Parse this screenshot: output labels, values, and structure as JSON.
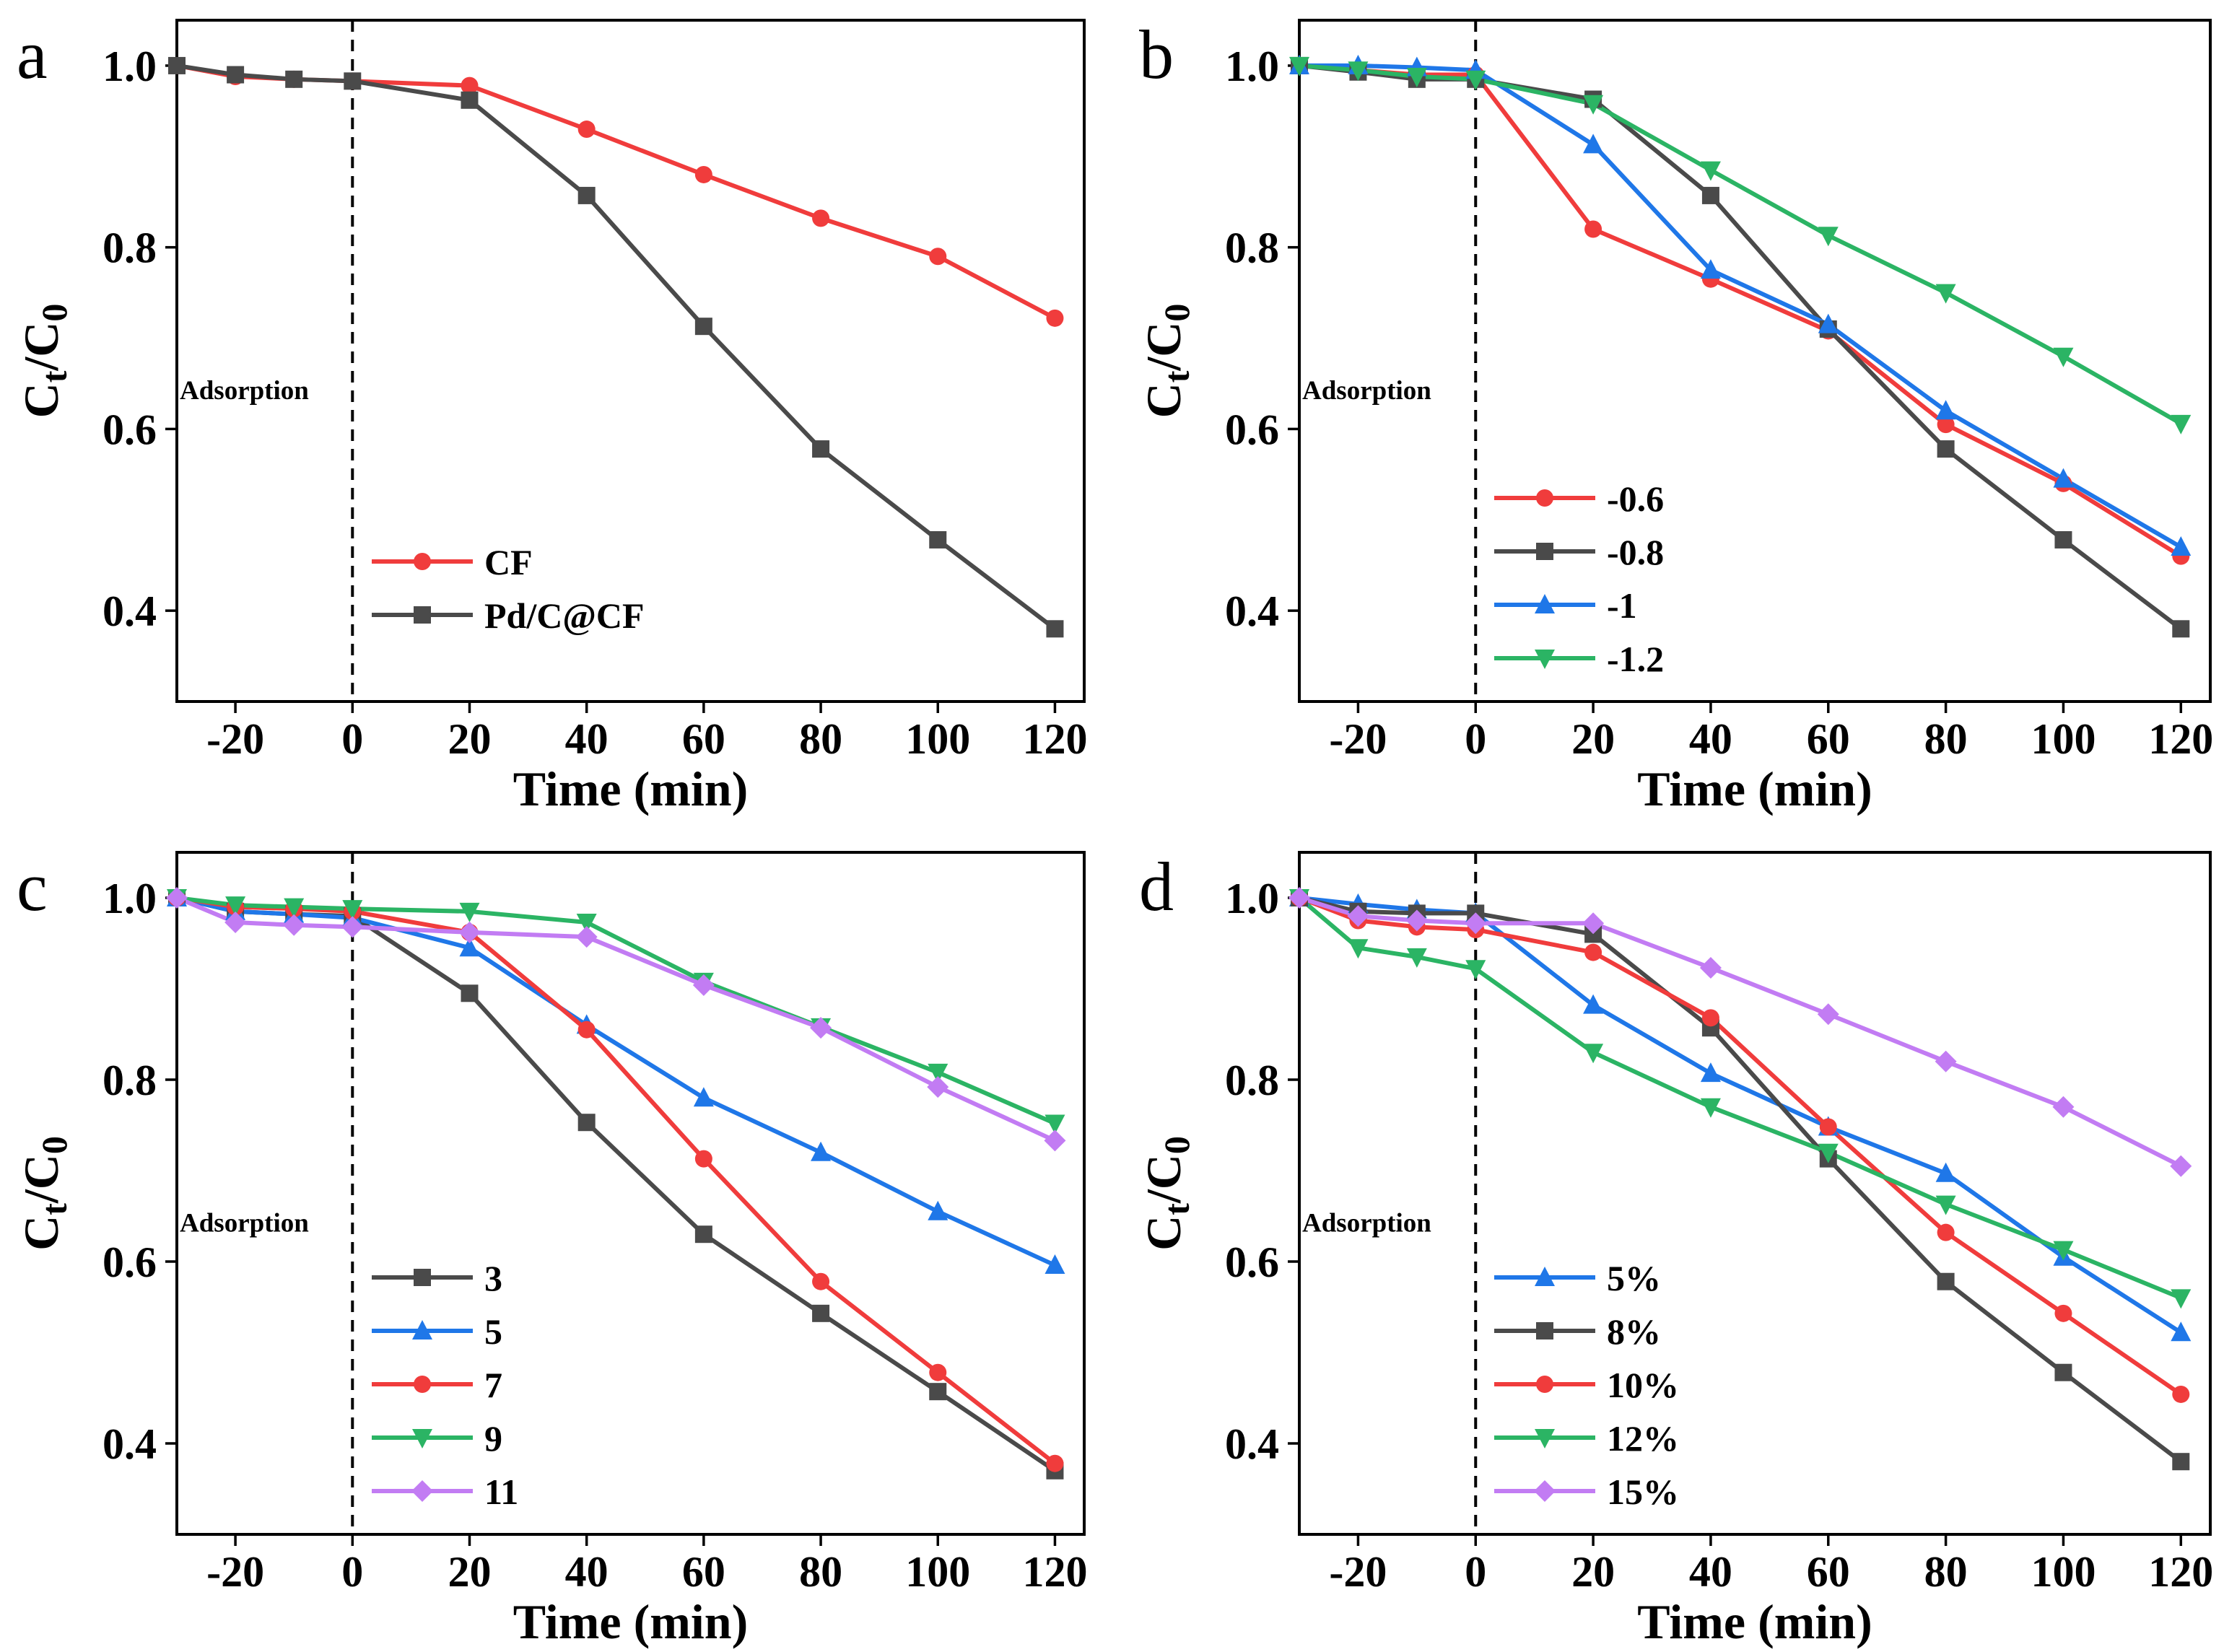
{
  "chart_data": [
    {
      "type": "line",
      "panel": "a",
      "title": "",
      "xlabel": "Time (min)",
      "ylabel": "Ct/C0",
      "xlim": [
        -30,
        125
      ],
      "ylim": [
        0.3,
        1.05
      ],
      "xticks": [
        -20,
        0,
        20,
        40,
        60,
        80,
        100,
        120
      ],
      "yticks": [
        0.4,
        0.6,
        0.8,
        1.0
      ],
      "annotation": "Adsorption",
      "vline_x": 0,
      "legend_position": "bottom-center",
      "x": [
        -30,
        -20,
        -10,
        0,
        20,
        40,
        60,
        80,
        100,
        120
      ],
      "series": [
        {
          "name": "CF",
          "color": "#f03c3c",
          "marker": "circle",
          "values": [
            1.0,
            0.988,
            0.985,
            0.983,
            0.978,
            0.93,
            0.88,
            0.832,
            0.79,
            0.722
          ]
        },
        {
          "name": "Pd/C@CF",
          "color": "#4a4a4a",
          "marker": "square",
          "values": [
            1.0,
            0.99,
            0.985,
            0.983,
            0.962,
            0.857,
            0.713,
            0.578,
            0.478,
            0.38
          ]
        }
      ]
    },
    {
      "type": "line",
      "panel": "b",
      "title": "",
      "xlabel": "Time (min)",
      "ylabel": "Ct/C0",
      "xlim": [
        -30,
        125
      ],
      "ylim": [
        0.3,
        1.05
      ],
      "xticks": [
        -20,
        0,
        20,
        40,
        60,
        80,
        100,
        120
      ],
      "yticks": [
        0.4,
        0.6,
        0.8,
        1.0
      ],
      "annotation": "Adsorption",
      "vline_x": 0,
      "legend_position": "bottom-center",
      "x": [
        -30,
        -20,
        -10,
        0,
        20,
        40,
        60,
        80,
        100,
        120
      ],
      "series": [
        {
          "name": "-0.6",
          "color": "#f03c3c",
          "marker": "circle",
          "values": [
            1.0,
            0.995,
            0.99,
            0.99,
            0.82,
            0.765,
            0.708,
            0.605,
            0.54,
            0.46
          ]
        },
        {
          "name": "-0.8",
          "color": "#4a4a4a",
          "marker": "square",
          "values": [
            1.0,
            0.993,
            0.985,
            0.985,
            0.963,
            0.857,
            0.71,
            0.578,
            0.478,
            0.38
          ]
        },
        {
          "name": "-1",
          "color": "#1f77e8",
          "marker": "triangle-up",
          "values": [
            1.0,
            1.0,
            0.998,
            0.995,
            0.913,
            0.775,
            0.715,
            0.62,
            0.545,
            0.47
          ]
        },
        {
          "name": "-1.2",
          "color": "#2bb464",
          "marker": "triangle-down",
          "values": [
            1.0,
            0.995,
            0.988,
            0.985,
            0.958,
            0.885,
            0.813,
            0.75,
            0.68,
            0.606
          ]
        }
      ]
    },
    {
      "type": "line",
      "panel": "c",
      "title": "",
      "xlabel": "Time (min)",
      "ylabel": "Ct/C0",
      "xlim": [
        -30,
        125
      ],
      "ylim": [
        0.3,
        1.05
      ],
      "xticks": [
        -20,
        0,
        20,
        40,
        60,
        80,
        100,
        120
      ],
      "yticks": [
        0.4,
        0.6,
        0.8,
        1.0
      ],
      "annotation": "Adsorption",
      "vline_x": 0,
      "legend_position": "bottom-center",
      "x": [
        -30,
        -20,
        -10,
        0,
        20,
        40,
        60,
        80,
        100,
        120
      ],
      "series": [
        {
          "name": "3",
          "color": "#4a4a4a",
          "marker": "square",
          "values": [
            1.0,
            0.985,
            0.982,
            0.98,
            0.895,
            0.753,
            0.63,
            0.543,
            0.457,
            0.37
          ]
        },
        {
          "name": "5",
          "color": "#1f77e8",
          "marker": "triangle-up",
          "values": [
            1.0,
            0.985,
            0.982,
            0.978,
            0.945,
            0.86,
            0.78,
            0.72,
            0.655,
            0.596
          ]
        },
        {
          "name": "7",
          "color": "#f03c3c",
          "marker": "circle",
          "values": [
            1.0,
            0.99,
            0.988,
            0.985,
            0.962,
            0.855,
            0.713,
            0.578,
            0.478,
            0.378
          ]
        },
        {
          "name": "9",
          "color": "#2bb464",
          "marker": "triangle-down",
          "values": [
            1.0,
            0.992,
            0.99,
            0.988,
            0.985,
            0.973,
            0.908,
            0.858,
            0.808,
            0.752
          ]
        },
        {
          "name": "11",
          "color": "#c27cf3",
          "marker": "diamond",
          "values": [
            1.0,
            0.973,
            0.97,
            0.968,
            0.962,
            0.957,
            0.904,
            0.857,
            0.792,
            0.733
          ]
        }
      ]
    },
    {
      "type": "line",
      "panel": "d",
      "title": "",
      "xlabel": "Time (min)",
      "ylabel": "Ct/C0",
      "xlim": [
        -30,
        125
      ],
      "ylim": [
        0.3,
        1.05
      ],
      "xticks": [
        -20,
        0,
        20,
        40,
        60,
        80,
        100,
        120
      ],
      "yticks": [
        0.4,
        0.6,
        0.8,
        1.0
      ],
      "annotation": "Adsorption",
      "vline_x": 0,
      "legend_position": "bottom-center",
      "x": [
        -30,
        -20,
        -10,
        0,
        20,
        40,
        60,
        80,
        100,
        120
      ],
      "series": [
        {
          "name": "5%",
          "color": "#1f77e8",
          "marker": "triangle-up",
          "values": [
            1.0,
            0.993,
            0.987,
            0.983,
            0.882,
            0.807,
            0.748,
            0.697,
            0.605,
            0.522
          ]
        },
        {
          "name": "8%",
          "color": "#4a4a4a",
          "marker": "square",
          "values": [
            1.0,
            0.985,
            0.983,
            0.983,
            0.96,
            0.857,
            0.713,
            0.578,
            0.478,
            0.38
          ]
        },
        {
          "name": "10%",
          "color": "#f03c3c",
          "marker": "circle",
          "values": [
            1.0,
            0.975,
            0.968,
            0.965,
            0.94,
            0.868,
            0.748,
            0.632,
            0.543,
            0.454
          ]
        },
        {
          "name": "12%",
          "color": "#2bb464",
          "marker": "triangle-down",
          "values": [
            1.0,
            0.945,
            0.935,
            0.922,
            0.83,
            0.77,
            0.72,
            0.663,
            0.613,
            0.56
          ]
        },
        {
          "name": "15%",
          "color": "#c27cf3",
          "marker": "diamond",
          "values": [
            1.0,
            0.98,
            0.975,
            0.972,
            0.972,
            0.923,
            0.872,
            0.82,
            0.77,
            0.705
          ]
        }
      ]
    }
  ]
}
